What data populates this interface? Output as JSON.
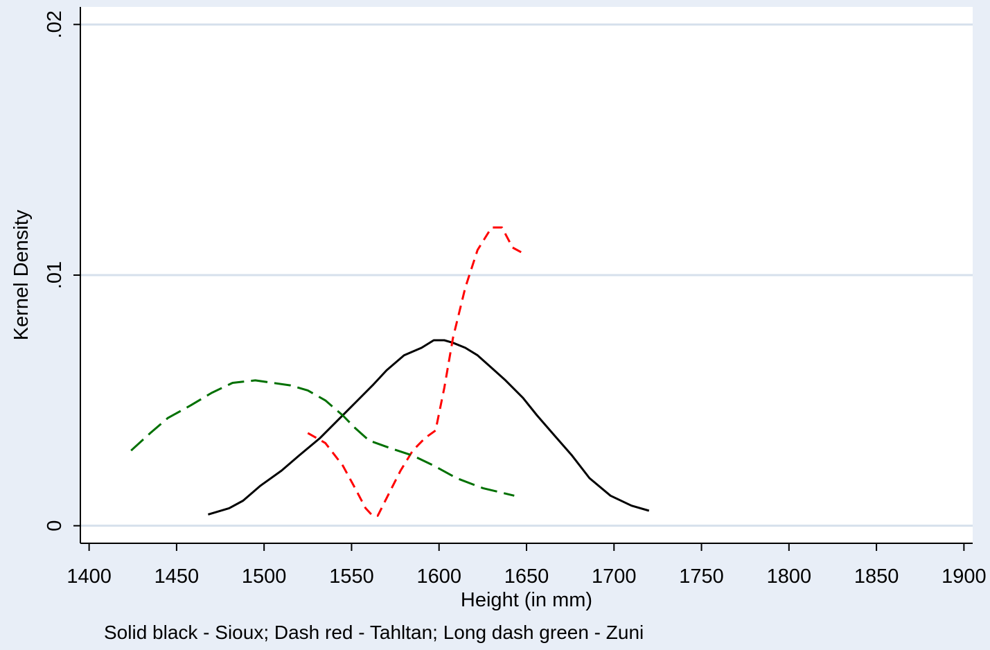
{
  "chart_data": {
    "type": "line",
    "xlabel": "Height (in mm)",
    "ylabel": "Kernel Density",
    "xlim": [
      1395,
      1905
    ],
    "ylim": [
      -0.0007,
      0.0207
    ],
    "x_ticks": [
      1400,
      1450,
      1500,
      1550,
      1600,
      1650,
      1700,
      1750,
      1800,
      1850,
      1900
    ],
    "x_tick_labels": [
      "1400",
      "1450",
      "1500",
      "1550",
      "1600",
      "1650",
      "1700",
      "1750",
      "1800",
      "1850",
      "1900"
    ],
    "y_ticks": [
      0,
      0.01,
      0.02
    ],
    "y_tick_labels": [
      "0",
      ".01",
      ".02"
    ],
    "grid": true,
    "caption": "Solid black - Sioux; Dash red - Tahltan; Long dash green - Zuni",
    "colors": {
      "background": "#e8eef7",
      "plot_area": "#ffffff",
      "grid": "#d6e0ec",
      "axis": "#000000"
    },
    "series": [
      {
        "color": "#000000",
        "dash": "solid",
        "x": [
          1468,
          1480,
          1488,
          1498,
          1510,
          1520,
          1532,
          1542,
          1552,
          1562,
          1570,
          1580,
          1590,
          1597,
          1603,
          1608,
          1615,
          1622,
          1630,
          1638,
          1648,
          1656,
          1666,
          1676,
          1686,
          1698,
          1710,
          1720
        ],
        "y": [
          0.00045,
          0.0007,
          0.001,
          0.0016,
          0.0022,
          0.0028,
          0.0035,
          0.0042,
          0.0049,
          0.0056,
          0.0062,
          0.0068,
          0.0071,
          0.0074,
          0.0074,
          0.0073,
          0.0071,
          0.0068,
          0.0063,
          0.0058,
          0.0051,
          0.0044,
          0.0036,
          0.0028,
          0.0019,
          0.0012,
          0.0008,
          0.0006
        ]
      },
      {
        "color": "#ff0000",
        "dash": "dash",
        "x": [
          1525,
          1535,
          1545,
          1552,
          1558,
          1562,
          1565,
          1570,
          1578,
          1585,
          1592,
          1598,
          1603,
          1608,
          1615,
          1622,
          1630,
          1636,
          1642,
          1650
        ],
        "y": [
          0.0037,
          0.0033,
          0.0024,
          0.0015,
          0.0007,
          0.0004,
          0.0004,
          0.0011,
          0.0022,
          0.003,
          0.0035,
          0.0038,
          0.0055,
          0.0075,
          0.0095,
          0.011,
          0.0119,
          0.0119,
          0.0111,
          0.0108
        ]
      },
      {
        "color": "#007000",
        "dash": "longdash",
        "x": [
          1424,
          1435,
          1445,
          1458,
          1470,
          1482,
          1495,
          1505,
          1515,
          1525,
          1535,
          1545,
          1552,
          1560,
          1572,
          1585,
          1597,
          1610,
          1625,
          1643
        ],
        "y": [
          0.003,
          0.0037,
          0.0043,
          0.0048,
          0.0053,
          0.0057,
          0.0058,
          0.0057,
          0.0056,
          0.0054,
          0.005,
          0.0044,
          0.0039,
          0.0034,
          0.0031,
          0.0028,
          0.0024,
          0.0019,
          0.0015,
          0.0012
        ]
      }
    ]
  }
}
